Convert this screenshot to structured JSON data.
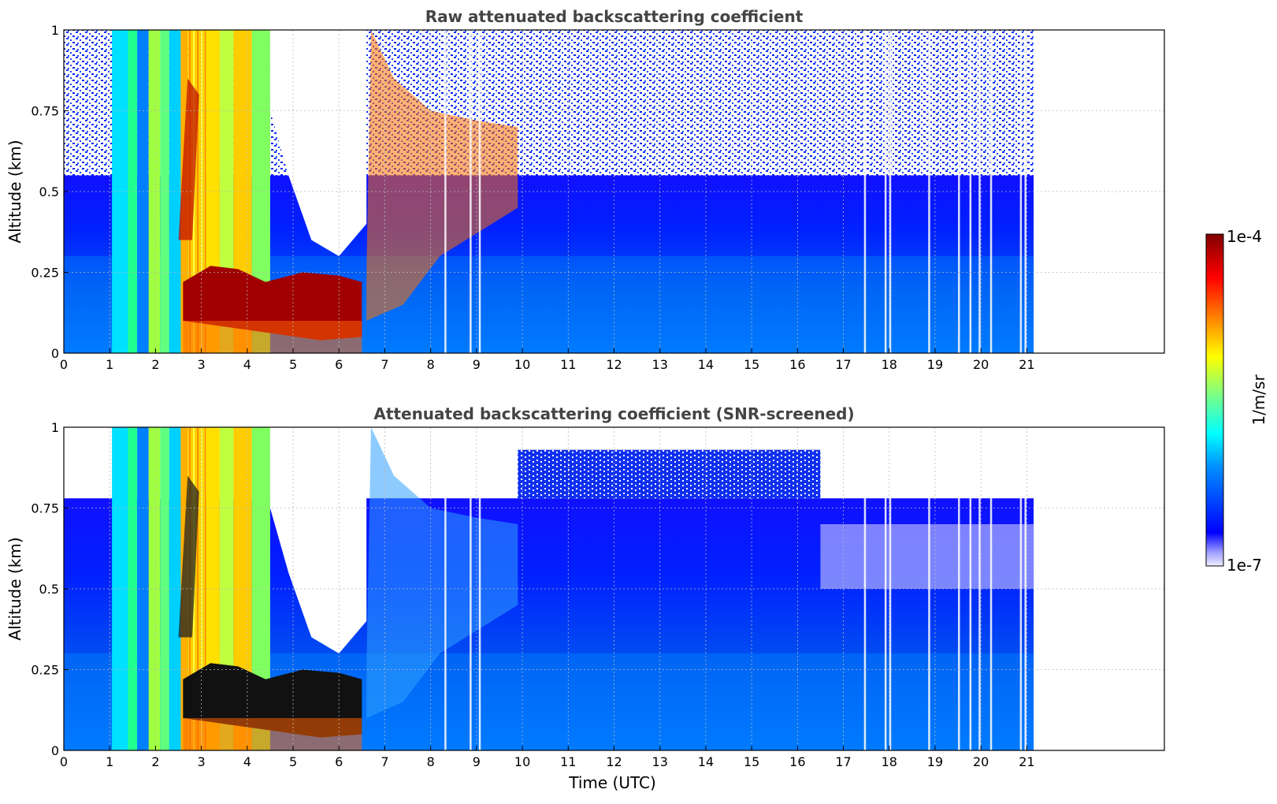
{
  "chart_data": [
    {
      "type": "heatmap",
      "title": "Raw attenuated backscattering coefficient",
      "xlabel": "",
      "ylabel": "Altitude (km)",
      "xlim": [
        0,
        24
      ],
      "ylim": [
        0,
        1
      ],
      "xticks": [
        "0",
        "1",
        "2",
        "3",
        "4",
        "5",
        "6",
        "7",
        "8",
        "9",
        "10",
        "11",
        "12",
        "13",
        "14",
        "15",
        "16",
        "17",
        "18",
        "19",
        "20",
        "21"
      ],
      "yticks": [
        "0",
        "0.25",
        "0.5",
        "0.75",
        "1"
      ],
      "grid": true,
      "data_end_time": 21.15
    },
    {
      "type": "heatmap",
      "title": "Attenuated backscattering coefficient (SNR-screened)",
      "xlabel": "Time (UTC)",
      "ylabel": "Altitude (km)",
      "xlim": [
        0,
        24
      ],
      "ylim": [
        0,
        1
      ],
      "xticks": [
        "0",
        "1",
        "2",
        "3",
        "4",
        "5",
        "6",
        "7",
        "8",
        "9",
        "10",
        "11",
        "12",
        "13",
        "14",
        "15",
        "16",
        "17",
        "18",
        "19",
        "20",
        "21"
      ],
      "yticks": [
        "0",
        "0.25",
        "0.5",
        "0.75",
        "1"
      ],
      "grid": true,
      "data_end_time": 21.15
    }
  ],
  "colorbar": {
    "label": "1/m/sr",
    "max_label": "1e-4",
    "min_label": "1e-7",
    "colormap": "jet",
    "colors": [
      "#eeeeff",
      "#0000ff",
      "#00a0ff",
      "#00ffff",
      "#80ff80",
      "#ffff00",
      "#ff8000",
      "#ff0000",
      "#800000"
    ]
  }
}
